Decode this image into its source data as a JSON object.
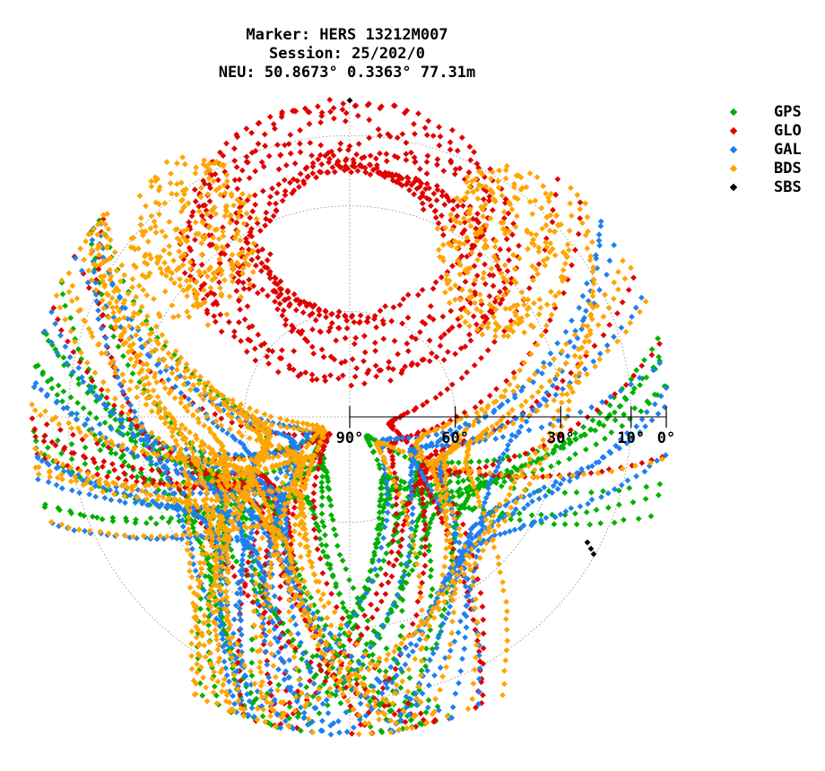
{
  "title": {
    "line1": "Marker: HERS 13212M007",
    "line2": "Session: 25/202/0",
    "line3": "NEU: 50.8673° 0.3363° 77.31m"
  },
  "chart_data": {
    "type": "scatter",
    "projection": "polar-skyplot",
    "radial_axis": "elevation",
    "tick_labels": [
      "90°",
      "60°",
      "30°",
      "10°",
      "0°"
    ],
    "tick_values": [
      90,
      60,
      30,
      10,
      0
    ],
    "grid": true,
    "legend_position": "top-right",
    "series": [
      {
        "name": "GPS",
        "color": "#00b000"
      },
      {
        "name": "GLO",
        "color": "#e00000"
      },
      {
        "name": "GAL",
        "color": "#1e80f0"
      },
      {
        "name": "BDS",
        "color": "#ffa500"
      },
      {
        "name": "SBS",
        "color": "#000000"
      }
    ]
  }
}
